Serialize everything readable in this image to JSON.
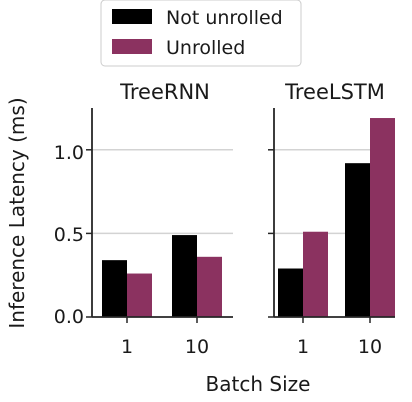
{
  "colors": {
    "not_unrolled": "#000000",
    "unrolled": "#8b3260",
    "grid": "#d3d3d3",
    "axis": "#262626"
  },
  "legend": {
    "location": "top-center",
    "entries": [
      "Not unrolled",
      "Unrolled"
    ]
  },
  "axes": {
    "ylabel": "Inference Latency (ms)",
    "xlabel": "Batch Size",
    "yticks": [
      "0.0",
      "0.5",
      "1.0"
    ]
  },
  "chart_data": [
    {
      "type": "bar",
      "title": "TreeRNN",
      "categories": [
        "1",
        "10"
      ],
      "series": [
        {
          "name": "Not unrolled",
          "values": [
            0.34,
            0.49
          ]
        },
        {
          "name": "Unrolled",
          "values": [
            0.26,
            0.36
          ]
        }
      ],
      "ylim": [
        0,
        1.25
      ],
      "grid": "horizontal"
    },
    {
      "type": "bar",
      "title": "TreeLSTM",
      "categories": [
        "1",
        "10"
      ],
      "series": [
        {
          "name": "Not unrolled",
          "values": [
            0.29,
            0.92
          ]
        },
        {
          "name": "Unrolled",
          "values": [
            0.51,
            1.19
          ]
        }
      ],
      "ylim": [
        0,
        1.25
      ],
      "grid": "horizontal"
    }
  ]
}
